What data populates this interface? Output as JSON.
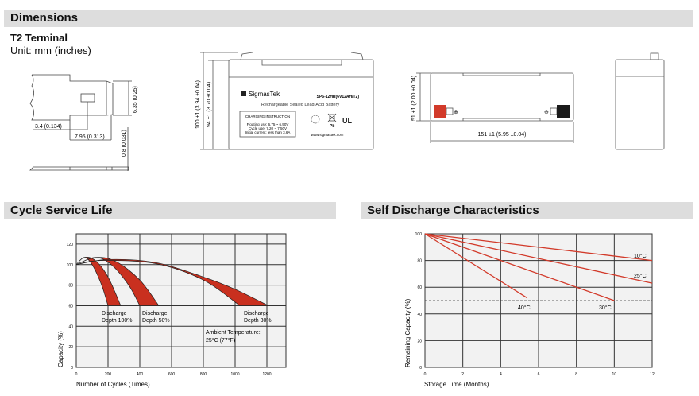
{
  "sections": {
    "dimensions": "Dimensions",
    "cycle_life": "Cycle Service Life",
    "self_discharge": "Self Discharge Characteristics"
  },
  "terminal": {
    "title": "T2 Terminal",
    "unit": "Unit: mm (inches)",
    "dim_height": "6.35 (0.25)",
    "dim_hole": "3.4 (0.134)",
    "dim_length": "7.95 (0.313)",
    "dim_thickness": "0.8 (0.031)"
  },
  "battery": {
    "dim_total_height": "100 ±1 (3.94 ±0.04)",
    "dim_body_height": "94 ±1 (3.70 ±0.04)",
    "dim_width": "51 ±1 (2.00 ±0.04)",
    "dim_length": "151 ±1 (5.95 ±0.04)",
    "brand": "SigmasTek",
    "model": "SP6-12HR(6V12AH/T2)",
    "subtitle": "Rechargeable Sealed Lead-Acid Battery",
    "charging_title": "CHARGING INSTRUCTION",
    "charging_lines": [
      "Floating use: 6.75 ~ 6.90V",
      "Cycle use: 7.20 ~ 7.50V",
      "Initial current: less than 3.6A"
    ],
    "pb_label": "Pb",
    "website": "www.sigmastek.com",
    "colors": {
      "positive": "#d23a2a",
      "negative": "#1a1a1a"
    }
  },
  "chart_data": [
    {
      "type": "area",
      "xlabel": "Number of Cycles (Times)",
      "ylabel": "Capacity  (%)",
      "xlim": [
        0,
        1300
      ],
      "ylim": [
        0,
        130
      ],
      "xticks": [
        0,
        200,
        400,
        600,
        800,
        1000,
        1200
      ],
      "yticks": [
        0,
        20,
        40,
        60,
        80,
        100,
        120
      ],
      "grid": true,
      "color": "#c9301f",
      "series": [
        {
          "name": "Discharge Depth 100%",
          "outer": [
            [
              0,
              100
            ],
            [
              50,
              107
            ],
            [
              120,
              104
            ],
            [
              200,
              88
            ],
            [
              280,
              60
            ]
          ],
          "inner": [
            [
              0,
              100
            ],
            [
              50,
              107
            ],
            [
              100,
              100
            ],
            [
              160,
              80
            ],
            [
              200,
              60
            ]
          ]
        },
        {
          "name": "Discharge Depth 50%",
          "outer": [
            [
              0,
              100
            ],
            [
              120,
              107
            ],
            [
              250,
              103
            ],
            [
              400,
              85
            ],
            [
              520,
              60
            ]
          ],
          "inner": [
            [
              0,
              100
            ],
            [
              120,
              107
            ],
            [
              220,
              100
            ],
            [
              330,
              80
            ],
            [
              400,
              60
            ]
          ]
        },
        {
          "name": "Discharge Depth 30%",
          "outer": [
            [
              0,
              100
            ],
            [
              200,
              105
            ],
            [
              500,
              102
            ],
            [
              800,
              88
            ],
            [
              1000,
              76
            ],
            [
              1210,
              60
            ]
          ],
          "inner": [
            [
              0,
              100
            ],
            [
              150,
              104
            ],
            [
              500,
              101
            ],
            [
              800,
              85
            ],
            [
              1030,
              60
            ]
          ]
        }
      ],
      "labels": [
        {
          "lines": [
            "Discharge",
            "Depth 100%"
          ]
        },
        {
          "lines": [
            "Discharge",
            "Depth 50%"
          ]
        },
        {
          "lines": [
            "Discharge",
            "Depth 30%"
          ]
        }
      ],
      "annotation": [
        "Ambient Temperature:",
        "25°C (77°F)"
      ]
    },
    {
      "type": "line",
      "xlabel": "Storage Time (Months)",
      "ylabel": "Remaining Capacity (%)",
      "xlim": [
        0,
        12
      ],
      "ylim": [
        0,
        100
      ],
      "xticks": [
        0,
        2,
        4,
        6,
        8,
        10,
        12
      ],
      "yticks": [
        0,
        20,
        40,
        60,
        80,
        100
      ],
      "grid": true,
      "reference_line": 50,
      "color": "#d23a2a",
      "series": [
        {
          "name": "10°C",
          "x": [
            0,
            12
          ],
          "y": [
            100,
            80
          ]
        },
        {
          "name": "25°C",
          "x": [
            0,
            12
          ],
          "y": [
            100,
            63
          ]
        },
        {
          "name": "30°C",
          "x": [
            0,
            10
          ],
          "y": [
            100,
            50
          ]
        },
        {
          "name": "40°C",
          "x": [
            0,
            5.4
          ],
          "y": [
            100,
            52
          ]
        }
      ]
    }
  ]
}
